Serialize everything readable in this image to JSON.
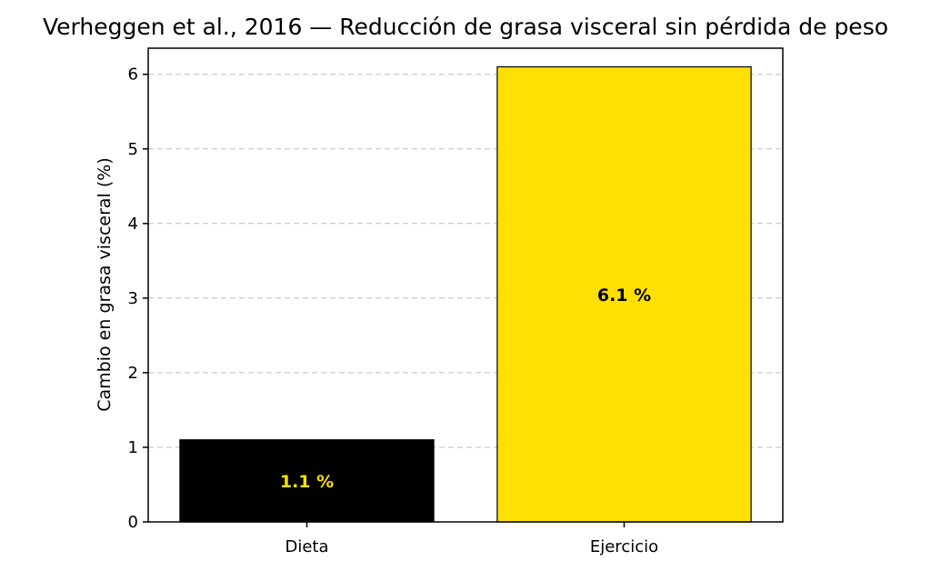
{
  "chart_data": {
    "type": "bar",
    "title": "Verheggen et al., 2016 — Reducción de grasa visceral sin pérdida de peso",
    "xlabel": "",
    "ylabel": "Cambio en grasa visceral (%)",
    "categories": [
      "Dieta",
      "Ejercicio"
    ],
    "values": [
      1.1,
      6.1
    ],
    "bar_labels": [
      "1.1 %",
      "6.1 %"
    ],
    "bar_colors": [
      "#000000",
      "#FFE000"
    ],
    "bar_label_colors": [
      "#FFE000",
      "#000000"
    ],
    "ylim": [
      0,
      6.35
    ],
    "yticks": [
      0,
      1,
      2,
      3,
      4,
      5,
      6
    ],
    "grid": "y-dashed",
    "legend": "none"
  }
}
